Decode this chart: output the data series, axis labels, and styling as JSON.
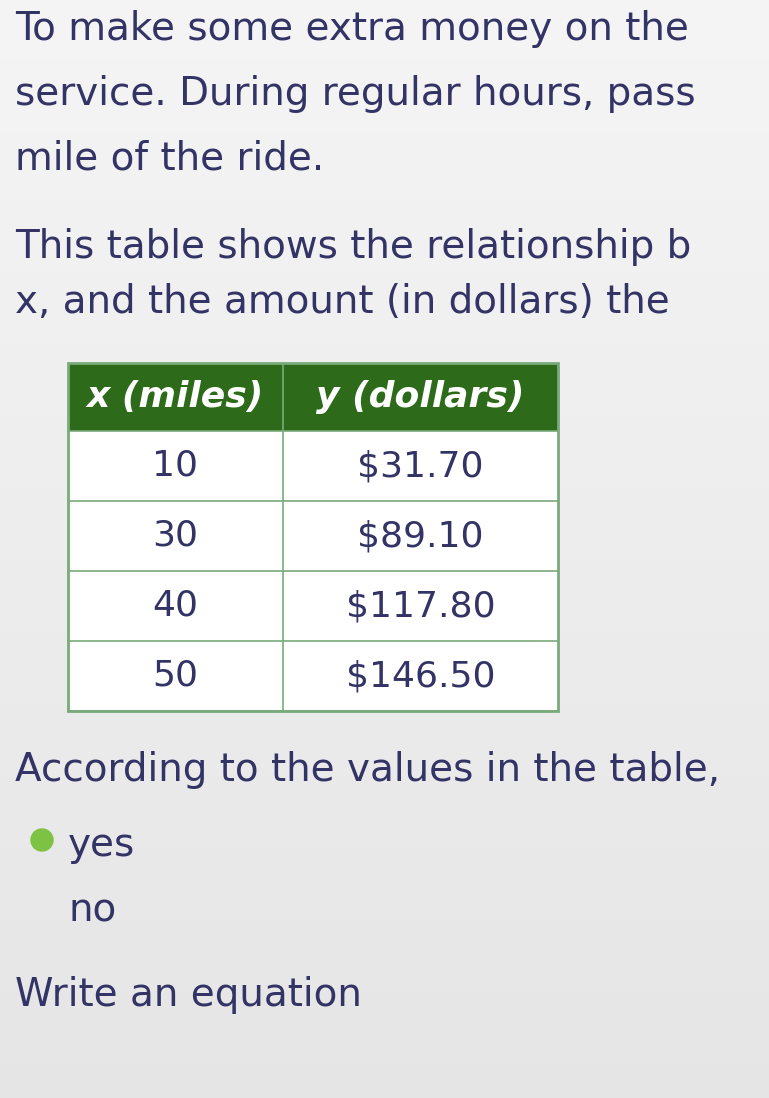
{
  "bg_color": "#e8e8ec",
  "top_text_lines": [
    "To make some extra money on the",
    "service. During regular hours, pass",
    "mile of the ride."
  ],
  "mid_text_lines": [
    "This table shows the relationship b",
    "x, and the amount (in dollars) the"
  ],
  "table_header": [
    "x (miles)",
    "y (dollars)"
  ],
  "table_data": [
    [
      "10",
      "$31.70"
    ],
    [
      "30",
      "$89.10"
    ],
    [
      "40",
      "$117.80"
    ],
    [
      "50",
      "$146.50"
    ]
  ],
  "header_bg": "#2d6b1a",
  "header_fg": "#ffffff",
  "table_border": "#7aaa7a",
  "bottom_text": "According to the values in the table,",
  "radio_yes_color": "#7dc242",
  "radio_yes_label": "yes",
  "radio_no_label": "no",
  "write_text": "Write an equation",
  "text_color": "#333366",
  "font_size_body": 28,
  "font_size_table_header": 26,
  "font_size_table_data": 26
}
